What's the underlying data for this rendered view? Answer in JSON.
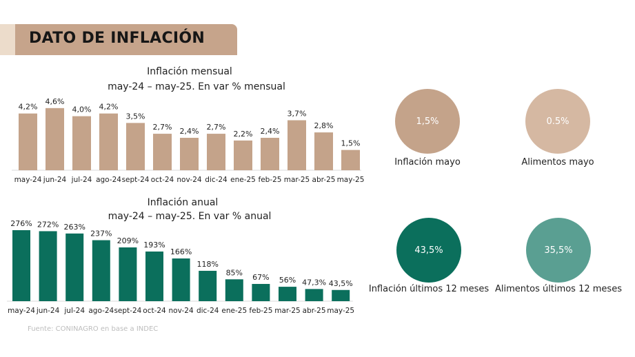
{
  "header": {
    "title": "DATO DE INFLACIÓN"
  },
  "colors": {
    "tan": "#c4a38a",
    "green": "#0b6f5c",
    "light_tan": "#d5b8a2",
    "teal": "#5a9f92",
    "banner": "#c6a48b"
  },
  "chart_data": [
    {
      "type": "bar",
      "title": "Inflación mensual",
      "subtitle": "may-24 – may-25. En var % mensual",
      "categories": [
        "may-24",
        "jun-24",
        "jul-24",
        "ago-24",
        "sept-24",
        "oct-24",
        "nov-24",
        "dic-24",
        "ene-25",
        "feb-25",
        "mar-25",
        "abr-25",
        "may-25"
      ],
      "values": [
        4.2,
        4.6,
        4.0,
        4.2,
        3.5,
        2.7,
        2.4,
        2.7,
        2.2,
        2.4,
        3.7,
        2.8,
        1.5
      ],
      "labels": [
        "4,2%",
        "4,6%",
        "4,0%",
        "4,2%",
        "3,5%",
        "2,7%",
        "2,4%",
        "2,7%",
        "2,2%",
        "2,4%",
        "3,7%",
        "2,8%",
        "1,5%"
      ],
      "color": "#c4a38a",
      "ylim": [
        0,
        5
      ]
    },
    {
      "type": "bar",
      "title": "Inflación anual",
      "subtitle": "may-24 – may-25. En var % anual",
      "categories": [
        "may-24",
        "jun-24",
        "jul-24",
        "ago-24",
        "sept-24",
        "oct-24",
        "nov-24",
        "dic-24",
        "ene-25",
        "feb-25",
        "mar-25",
        "abr-25",
        "may-25"
      ],
      "values": [
        276,
        272,
        263,
        237,
        209,
        193,
        166,
        118,
        85,
        67,
        56,
        47.3,
        43.5
      ],
      "labels": [
        "276%",
        "272%",
        "263%",
        "237%",
        "209%",
        "193%",
        "166%",
        "118%",
        "85%",
        "67%",
        "56%",
        "47,3%",
        "43,5%"
      ],
      "color": "#0b6f5c",
      "ylim": [
        0,
        300
      ]
    }
  ],
  "source": "Fuente: CONINAGRO en base a INDEC",
  "kpis": [
    {
      "value": "1,5%",
      "label": "Inflación mayo",
      "color": "#c4a38a"
    },
    {
      "value": "0.5%",
      "label": "Alimentos mayo",
      "color": "#d5b8a2"
    },
    {
      "value": "43,5%",
      "label": "Inflación últimos 12 meses",
      "color": "#0b6f5c"
    },
    {
      "value": "35,5%",
      "label": "Alimentos últimos 12 meses",
      "color": "#5a9f92"
    }
  ]
}
